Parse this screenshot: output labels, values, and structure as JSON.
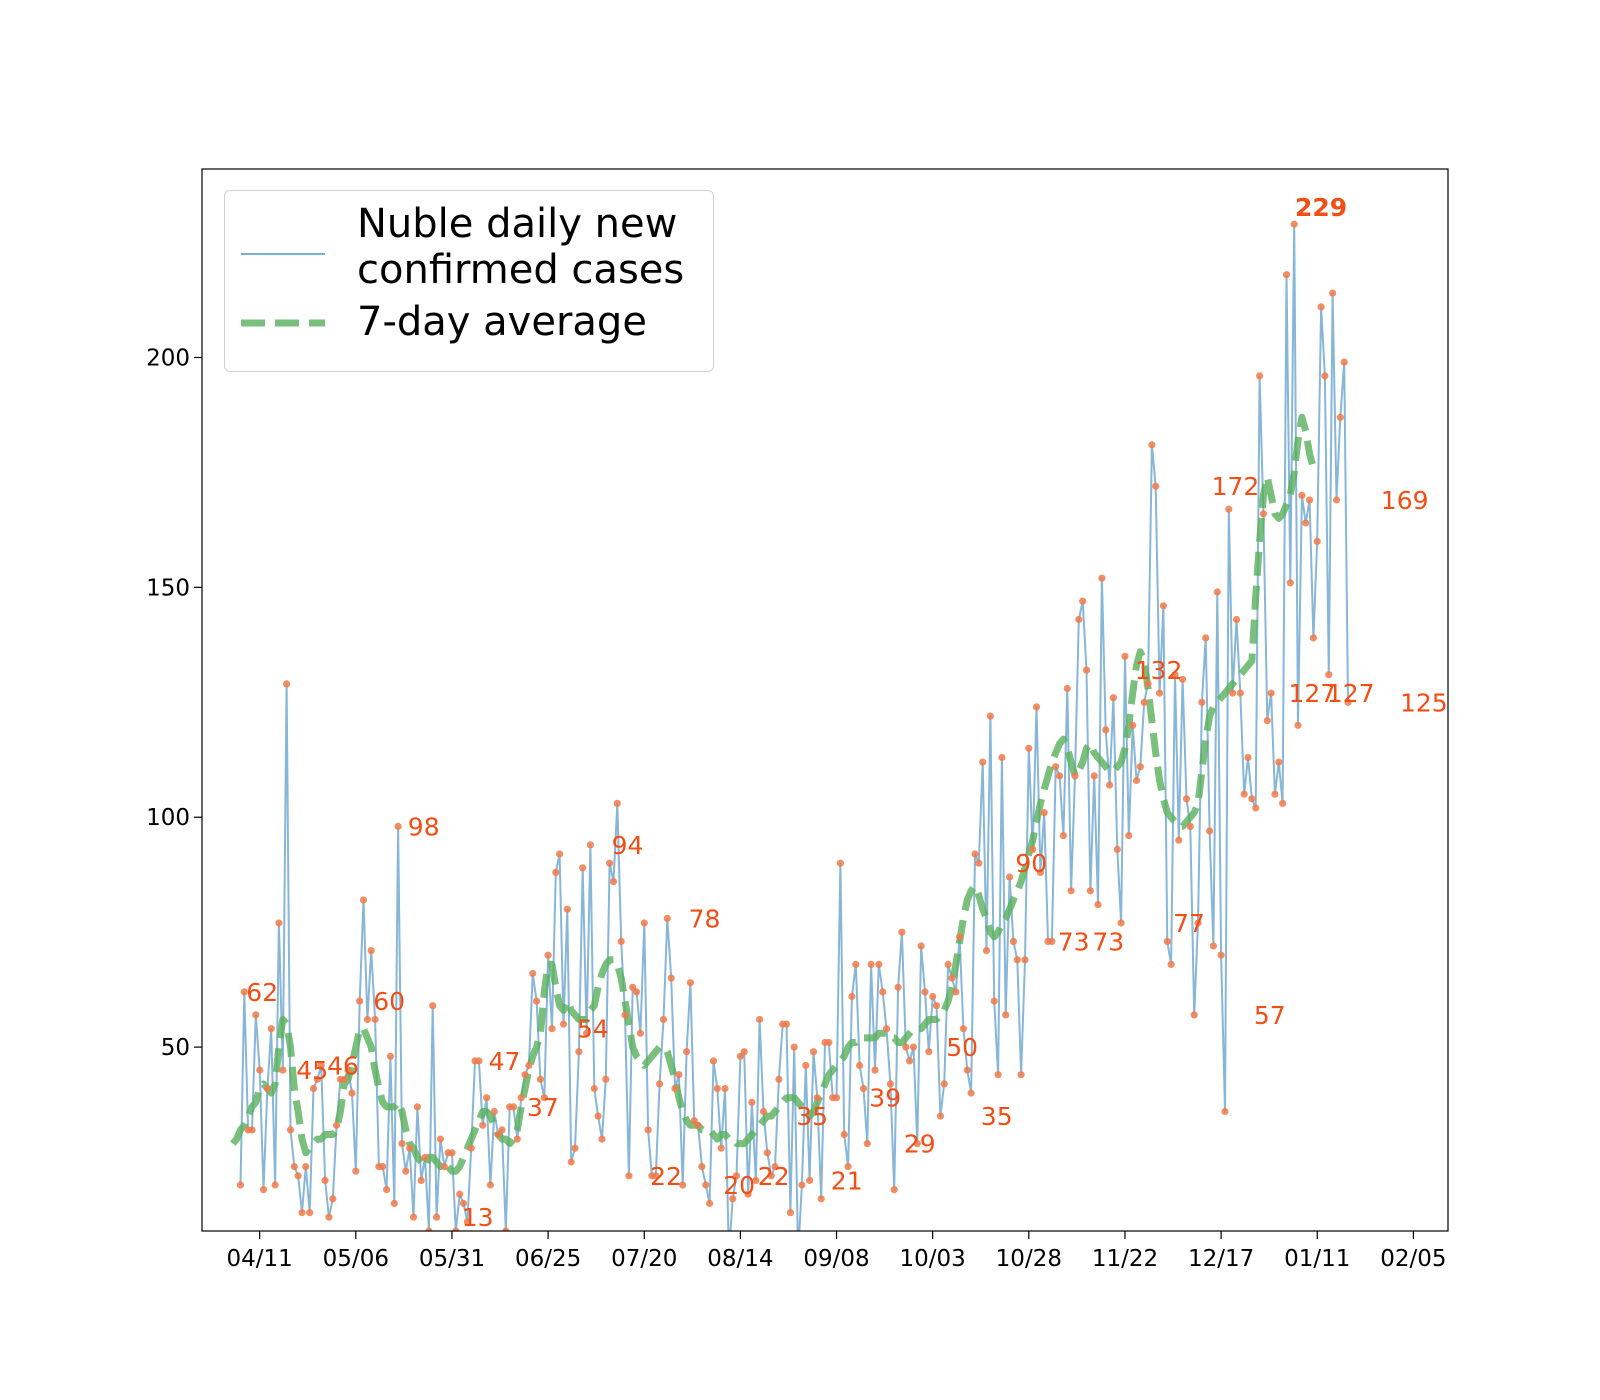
{
  "chart_data": {
    "type": "line",
    "title": "",
    "xlabel": "",
    "ylabel": "",
    "xlim": [
      "2020-03-27",
      "2021-02-14"
    ],
    "ylim": [
      10,
      241
    ],
    "x_ticks": [
      "04/11",
      "05/06",
      "05/31",
      "06/25",
      "07/20",
      "08/14",
      "09/08",
      "10/03",
      "10/28",
      "11/22",
      "12/17",
      "01/11",
      "02/05"
    ],
    "y_ticks": [
      50,
      100,
      150,
      200
    ],
    "grid": false,
    "legend_position": "top-left",
    "series": [
      {
        "name": "Nuble daily new confirmed cases",
        "style": "thin solid line with markers",
        "color": "#7aaed3",
        "marker_color": "#f07a4a",
        "start_date": "2020-04-06",
        "values": [
          20,
          62,
          32,
          32,
          57,
          45,
          19,
          41,
          54,
          20,
          77,
          45,
          129,
          32,
          24,
          22,
          14,
          24,
          14,
          41,
          43,
          46,
          21,
          13,
          17,
          33,
          43,
          43,
          45,
          40,
          23,
          60,
          82,
          56,
          71,
          56,
          24,
          24,
          19,
          48,
          16,
          98,
          29,
          23,
          28,
          13,
          37,
          21,
          26,
          10,
          59,
          13,
          30,
          24,
          27,
          27,
          10,
          18,
          16,
          12,
          28,
          47,
          47,
          33,
          39,
          20,
          36,
          31,
          32,
          10,
          37,
          37,
          30,
          39,
          44,
          46,
          66,
          60,
          43,
          39,
          70,
          54,
          88,
          92,
          55,
          80,
          25,
          28,
          49,
          89,
          53,
          94,
          41,
          35,
          30,
          43,
          90,
          86,
          103,
          73,
          57,
          22,
          63,
          62,
          53,
          77,
          32,
          22,
          22,
          42,
          56,
          78,
          65,
          41,
          44,
          20,
          49,
          64,
          34,
          33,
          24,
          20,
          16,
          47,
          41,
          28,
          41,
          5,
          17,
          22,
          48,
          49,
          18,
          38,
          21,
          56,
          36,
          27,
          22,
          24,
          43,
          55,
          55,
          14,
          50,
          5,
          20,
          46,
          21,
          49,
          39,
          17,
          51,
          51,
          39,
          39,
          90,
          31,
          24,
          61,
          68,
          46,
          41,
          29,
          68,
          45,
          68,
          62,
          54,
          42,
          19,
          63,
          75,
          50,
          47,
          50,
          29,
          72,
          62,
          49,
          61,
          59,
          35,
          42,
          68,
          65,
          62,
          74,
          54,
          45,
          40,
          92,
          90,
          112,
          71,
          122,
          60,
          44,
          113,
          57,
          87,
          73,
          69,
          44,
          69,
          115,
          93,
          124,
          88,
          101,
          73,
          73,
          111,
          109,
          96,
          128,
          84,
          109,
          143,
          147,
          132,
          84,
          109,
          81,
          152,
          119,
          107,
          126,
          93,
          77,
          135,
          96,
          120,
          108,
          111,
          125,
          129,
          181,
          172,
          127,
          146,
          73,
          68,
          131,
          95,
          130,
          104,
          98,
          57,
          77,
          125,
          139,
          97,
          72,
          149,
          70,
          36,
          167,
          127,
          143,
          127,
          105,
          113,
          104,
          102,
          196,
          166,
          121,
          127,
          105,
          112,
          103,
          218,
          151,
          229,
          120,
          170,
          164,
          169,
          139,
          160,
          211,
          196,
          131,
          214,
          169,
          187,
          199,
          125
        ]
      },
      {
        "name": "7-day average",
        "style": "thick dashed line",
        "color": "#59b05b",
        "start_date": "2020-04-04",
        "values": [
          29,
          30,
          32,
          33,
          35,
          37,
          38,
          41,
          42,
          41,
          40,
          42,
          50,
          56,
          55,
          50,
          41,
          36,
          30,
          27,
          28,
          29,
          30,
          30,
          31,
          31,
          31,
          32,
          36,
          42,
          43,
          46,
          50,
          54,
          54,
          52,
          50,
          45,
          41,
          38,
          37,
          37,
          37,
          38,
          36,
          32,
          29,
          28,
          26,
          25,
          24,
          26,
          26,
          25,
          24,
          25,
          24,
          23,
          23,
          24,
          26,
          28,
          30,
          32,
          34,
          36,
          36,
          35,
          33,
          31,
          30,
          30,
          29,
          30,
          32,
          37,
          41,
          45,
          48,
          50,
          53,
          62,
          68,
          68,
          63,
          59,
          58,
          60,
          58,
          57,
          56,
          56,
          56,
          58,
          59,
          63,
          66,
          68,
          69,
          69,
          68,
          65,
          60,
          55,
          50,
          48,
          47,
          46,
          47,
          48,
          49,
          50,
          50,
          49,
          46,
          43,
          39,
          36,
          34,
          33,
          33,
          33,
          32,
          32,
          32,
          31,
          30,
          31,
          31,
          30,
          30,
          29,
          29,
          29,
          30,
          31,
          32,
          33,
          34,
          35,
          35,
          36,
          37,
          38,
          39,
          39,
          39,
          38,
          37,
          36,
          35,
          36,
          38,
          40,
          42,
          44,
          45,
          46,
          47,
          48,
          50,
          51,
          51,
          52,
          52,
          52,
          52,
          52,
          53,
          53,
          53,
          52,
          52,
          51,
          51,
          52,
          53,
          54,
          54,
          54,
          55,
          56,
          56,
          56,
          57,
          58,
          60,
          63,
          68,
          73,
          78,
          82,
          84,
          85,
          83,
          80,
          78,
          75,
          74,
          75,
          77,
          78,
          80,
          82,
          84,
          86,
          89,
          92,
          95,
          99,
          103,
          106,
          109,
          112,
          114,
          116,
          117,
          115,
          112,
          109,
          110,
          112,
          115,
          116,
          114,
          113,
          112,
          111,
          110,
          110,
          111,
          112,
          115,
          120,
          127,
          133,
          136,
          134,
          128,
          121,
          114,
          108,
          104,
          101,
          100,
          99,
          98,
          98,
          99,
          100,
          101,
          103,
          110,
          117,
          122,
          124,
          125,
          126,
          127,
          128,
          129,
          130,
          131,
          132,
          133,
          134,
          148,
          160,
          170,
          174,
          170,
          166,
          165,
          166,
          168,
          170,
          175,
          182,
          187,
          184,
          179,
          176,
          175
        ]
      }
    ],
    "annotations": [
      {
        "text": "62",
        "x": "2020-04-07",
        "y": 62
      },
      {
        "text": "45",
        "x": "2020-04-20",
        "y": 45
      },
      {
        "text": "46",
        "x": "2020-04-28",
        "y": 46
      },
      {
        "text": "60",
        "x": "2020-05-10",
        "y": 60
      },
      {
        "text": "98",
        "x": "2020-05-19",
        "y": 98
      },
      {
        "text": "13",
        "x": "2020-06-02",
        "y": 13
      },
      {
        "text": "47",
        "x": "2020-06-09",
        "y": 47
      },
      {
        "text": "37",
        "x": "2020-06-19",
        "y": 37
      },
      {
        "text": "54",
        "x": "2020-07-02",
        "y": 54
      },
      {
        "text": "94",
        "x": "2020-07-11",
        "y": 94
      },
      {
        "text": "22",
        "x": "2020-07-21",
        "y": 22
      },
      {
        "text": "78",
        "x": "2020-07-31",
        "y": 78
      },
      {
        "text": "20",
        "x": "2020-08-09",
        "y": 20
      },
      {
        "text": "22",
        "x": "2020-08-18",
        "y": 22
      },
      {
        "text": "35",
        "x": "2020-08-28",
        "y": 35
      },
      {
        "text": "21",
        "x": "2020-09-06",
        "y": 21
      },
      {
        "text": "39",
        "x": "2020-09-16",
        "y": 39
      },
      {
        "text": "29",
        "x": "2020-09-25",
        "y": 29
      },
      {
        "text": "50",
        "x": "2020-10-06",
        "y": 50
      },
      {
        "text": "35",
        "x": "2020-10-15",
        "y": 35
      },
      {
        "text": "90",
        "x": "2020-10-24",
        "y": 90
      },
      {
        "text": "73",
        "x": "2020-11-04",
        "y": 73
      },
      {
        "text": "73",
        "x": "2020-11-13",
        "y": 73
      },
      {
        "text": "132",
        "x": "2020-11-24",
        "y": 132
      },
      {
        "text": "77",
        "x": "2020-12-04",
        "y": 77
      },
      {
        "text": "172",
        "x": "2020-12-14",
        "y": 172
      },
      {
        "text": "57",
        "x": "2020-12-25",
        "y": 57
      },
      {
        "text": "127",
        "x": "2021-01-03",
        "y": 127
      },
      {
        "text": "127",
        "x": "2021-01-13",
        "y": 127
      },
      {
        "text": "169",
        "x": "2021-01-27",
        "y": 169
      },
      {
        "text": "125",
        "x": "2021-02-01",
        "y": 125
      },
      {
        "text": "229",
        "x": "2021-01-12",
        "y": 229,
        "bold": true
      }
    ],
    "annotation_color": "#f24e16"
  }
}
